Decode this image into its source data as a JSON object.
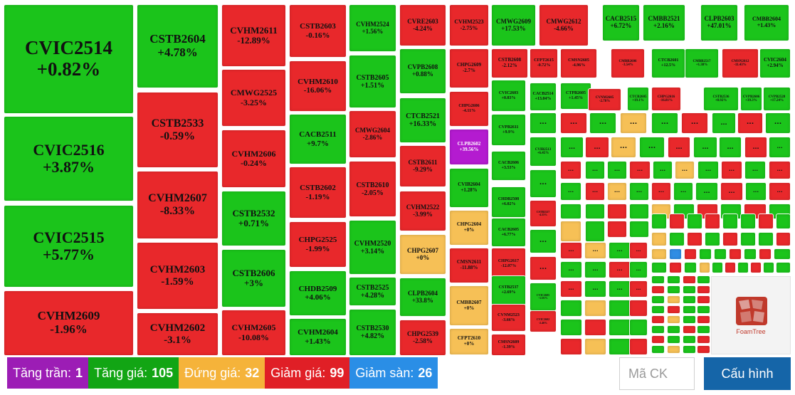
{
  "colors": {
    "up": "#1bc41b",
    "down": "#e8282b",
    "flat": "#f6c056",
    "ceiling": "#b41bd0",
    "floor": "#2f8de4",
    "config": "#1565a8"
  },
  "tiles": [
    {
      "name": "CVIC2514",
      "pct": "+0.82%",
      "c": "g"
    },
    {
      "name": "CVIC2516",
      "pct": "+3.87%",
      "c": "g"
    },
    {
      "name": "CVIC2515",
      "pct": "+5.77%",
      "c": "g"
    },
    {
      "name": "CVHM2609",
      "pct": "-1.96%",
      "c": "r"
    },
    {
      "name": "CSTB2604",
      "pct": "+4.78%",
      "c": "g"
    },
    {
      "name": "CSTB2533",
      "pct": "-0.59%",
      "c": "r"
    },
    {
      "name": "CVHM2607",
      "pct": "-8.33%",
      "c": "r"
    },
    {
      "name": "CVHM2603",
      "pct": "-1.59%",
      "c": "r"
    },
    {
      "name": "CVHM2602",
      "pct": "-3.1%",
      "c": "r"
    },
    {
      "name": "CVHM2611",
      "pct": "-12.89%",
      "c": "r"
    },
    {
      "name": "CMWG2525",
      "pct": "-3.25%",
      "c": "r"
    },
    {
      "name": "CVHM2606",
      "pct": "-0.24%",
      "c": "r"
    },
    {
      "name": "CSTB2532",
      "pct": "+0.71%",
      "c": "g"
    },
    {
      "name": "CSTB2606",
      "pct": "+3%",
      "c": "g"
    },
    {
      "name": "CVHM2605",
      "pct": "-10.08%",
      "c": "r"
    },
    {
      "name": "CSTB2603",
      "pct": "-0.16%",
      "c": "r"
    },
    {
      "name": "CVHM2610",
      "pct": "-16.06%",
      "c": "r"
    },
    {
      "name": "CSTB2602",
      "pct": "-1.19%",
      "c": "r"
    },
    {
      "name": "CHPG2525",
      "pct": "-1.99%",
      "c": "r"
    },
    {
      "name": "CHDB2509",
      "pct": "+4.06%",
      "c": "g"
    },
    {
      "name": "CVHM2604",
      "pct": "+1.43%",
      "c": "g"
    },
    {
      "name": "CVHM2524",
      "pct": "+1.56%",
      "c": "g"
    },
    {
      "name": "CACB2511",
      "pct": "+9.7%",
      "c": "g"
    },
    {
      "name": "CSTB2605",
      "pct": "+1.51%",
      "c": "g"
    },
    {
      "name": "CMWG2604",
      "pct": "-2.86%",
      "c": "r"
    },
    {
      "name": "CSTB2610",
      "pct": "-2.05%",
      "c": "r"
    },
    {
      "name": "CVHM2520",
      "pct": "+3.14%",
      "c": "g"
    },
    {
      "name": "CSTB2525",
      "pct": "+4.28%",
      "c": "g"
    },
    {
      "name": "CSTB2530",
      "pct": "+4.82%",
      "c": "g"
    },
    {
      "name": "CVRE2603",
      "pct": "-4.24%",
      "c": "r"
    },
    {
      "name": "CVPB2608",
      "pct": "+0.88%",
      "c": "g"
    },
    {
      "name": "CTCB2521",
      "pct": "+16.33%",
      "c": "g"
    },
    {
      "name": "CSTB2611",
      "pct": "-9.29%",
      "c": "r"
    },
    {
      "name": "CVHM2522",
      "pct": "-3.99%",
      "c": "r"
    },
    {
      "name": "CHPG2607",
      "pct": "+0%",
      "c": "y"
    },
    {
      "name": "CLPB2604",
      "pct": "+33.8%",
      "c": "g"
    },
    {
      "name": "CHPG2539",
      "pct": "-2.58%",
      "c": "r"
    },
    {
      "name": "CVHM2523",
      "pct": "-2.75%",
      "c": "r"
    },
    {
      "name": "CMWG2609",
      "pct": "+17.53%",
      "c": "g"
    },
    {
      "name": "CMWG2612",
      "pct": "-4.66%",
      "c": "r"
    },
    {
      "name": "CACB2515",
      "pct": "+6.72%",
      "c": "g"
    },
    {
      "name": "CMBB2521",
      "pct": "+2.16%",
      "c": "g"
    },
    {
      "name": "CLPB2603",
      "pct": "+47.01%",
      "c": "g"
    },
    {
      "name": "CMBB2604",
      "pct": "+1.43%",
      "c": "g"
    },
    {
      "name": "CHPG2609",
      "pct": "-2.7%",
      "c": "r"
    },
    {
      "name": "CHPG2606",
      "pct": "-4.11%",
      "c": "r"
    },
    {
      "name": "CLPB2602",
      "pct": "+39.56%",
      "c": "p"
    },
    {
      "name": "CVIB2604",
      "pct": "+1.28%",
      "c": "g"
    },
    {
      "name": "CHPG2604",
      "pct": "+0%",
      "c": "y"
    },
    {
      "name": "CMSN2611",
      "pct": "-11.88%",
      "c": "r"
    },
    {
      "name": "CMBB2607",
      "pct": "+0%",
      "c": "y"
    },
    {
      "name": "CFPT2610",
      "pct": "+0%",
      "c": "y"
    },
    {
      "name": "CSTB2608",
      "pct": "-2.12%",
      "c": "r"
    },
    {
      "name": "CFPT2615",
      "pct": "-0.72%",
      "c": "r"
    },
    {
      "name": "CMSN2605",
      "pct": "-4.96%",
      "c": "r"
    },
    {
      "name": "CMBB2606",
      "pct": "-3.54%",
      "c": "r"
    },
    {
      "name": "CTCB2601",
      "pct": "+12.5%",
      "c": "g"
    },
    {
      "name": "CMBB2517",
      "pct": "+1.38%",
      "c": "g"
    },
    {
      "name": "CMSN2612",
      "pct": "-11.43%",
      "c": "r"
    },
    {
      "name": "CVIC2604",
      "pct": "+2.94%",
      "c": "g"
    },
    {
      "name": "CVIC2603",
      "pct": "+0.83%",
      "c": "g"
    },
    {
      "name": "CACB2514",
      "pct": "+13.04%",
      "c": "g"
    },
    {
      "name": "CTPB2605",
      "pct": "+1.45%",
      "c": "g"
    },
    {
      "name": "CVNM2605",
      "pct": "-2.78%",
      "c": "r"
    },
    {
      "name": "CTCB2605",
      "pct": "+19.1%",
      "c": "g"
    },
    {
      "name": "CHPG2616",
      "pct": "-16.81%",
      "c": "r"
    },
    {
      "name": "CSTB2536",
      "pct": "+8.92%",
      "c": "g"
    },
    {
      "name": "CVPB2606",
      "pct": "+39.3%",
      "c": "g"
    },
    {
      "name": "CVPB2528",
      "pct": "+17.24%",
      "c": "g"
    },
    {
      "name": "CVPB2611",
      "pct": "+9.9%",
      "c": "g"
    },
    {
      "name": "CVIB2513",
      "pct": "+6.45%",
      "c": "g"
    },
    {
      "name": "CACB2606",
      "pct": "+3.53%",
      "c": "g"
    },
    {
      "name": "CHDB2508",
      "pct": "+6.02%",
      "c": "g"
    },
    {
      "name": "CSTB2527",
      "pct": "-4.55%",
      "c": "r"
    },
    {
      "name": "CACB2605",
      "pct": "+6.77%",
      "c": "g"
    },
    {
      "name": "CHPG2617",
      "pct": "-12.07%",
      "c": "r"
    },
    {
      "name": "CSTB2537",
      "pct": "+2.69%",
      "c": "g"
    },
    {
      "name": "CVIC2605",
      "pct": "+2.01%",
      "c": "g"
    },
    {
      "name": "CVNM2523",
      "pct": "-3.66%",
      "c": "r"
    },
    {
      "name": "CVIC2602",
      "pct": "-2.46%",
      "c": "r"
    },
    {
      "name": "CMSN2609",
      "pct": "-1.39%",
      "c": "r"
    }
  ],
  "more_label": "...",
  "legend": [
    {
      "label": "Tăng trần:",
      "count": "1",
      "c": "p"
    },
    {
      "label": "Tăng giá:",
      "count": "105",
      "c": "g"
    },
    {
      "label": "Đứng giá:",
      "count": "32",
      "c": "y"
    },
    {
      "label": "Giảm giá:",
      "count": "99",
      "c": "r"
    },
    {
      "label": "Giảm sàn:",
      "count": "26",
      "c": "b"
    }
  ],
  "search": {
    "placeholder": "Mã CK"
  },
  "config_button": {
    "label": "Cấu hình"
  },
  "logo": {
    "text": "FoamTree"
  }
}
